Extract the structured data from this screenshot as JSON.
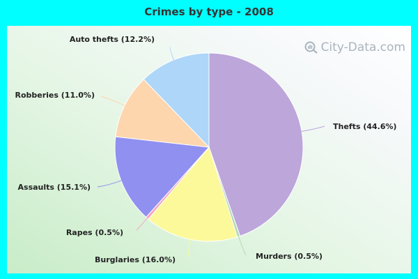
{
  "chart_data": {
    "type": "pie",
    "title": "Crimes by type - 2008",
    "slices": [
      {
        "label": "Thefts (44.6%)",
        "value": 44.6,
        "color": "#bca6da"
      },
      {
        "label": "Murders (0.5%)",
        "value": 0.5,
        "color": "#b8d8b8"
      },
      {
        "label": "Burglaries (16.0%)",
        "value": 16.0,
        "color": "#fbf99a"
      },
      {
        "label": "Rapes (0.5%)",
        "value": 0.5,
        "color": "#f4a6c4"
      },
      {
        "label": "Assaults (15.1%)",
        "value": 15.1,
        "color": "#9090f0"
      },
      {
        "label": "Robberies (11.0%)",
        "value": 11.0,
        "color": "#fdd6ae"
      },
      {
        "label": "Auto thefts (12.2%)",
        "value": 12.2,
        "color": "#add6f9"
      }
    ]
  },
  "watermark": {
    "text": "City-Data.com"
  }
}
